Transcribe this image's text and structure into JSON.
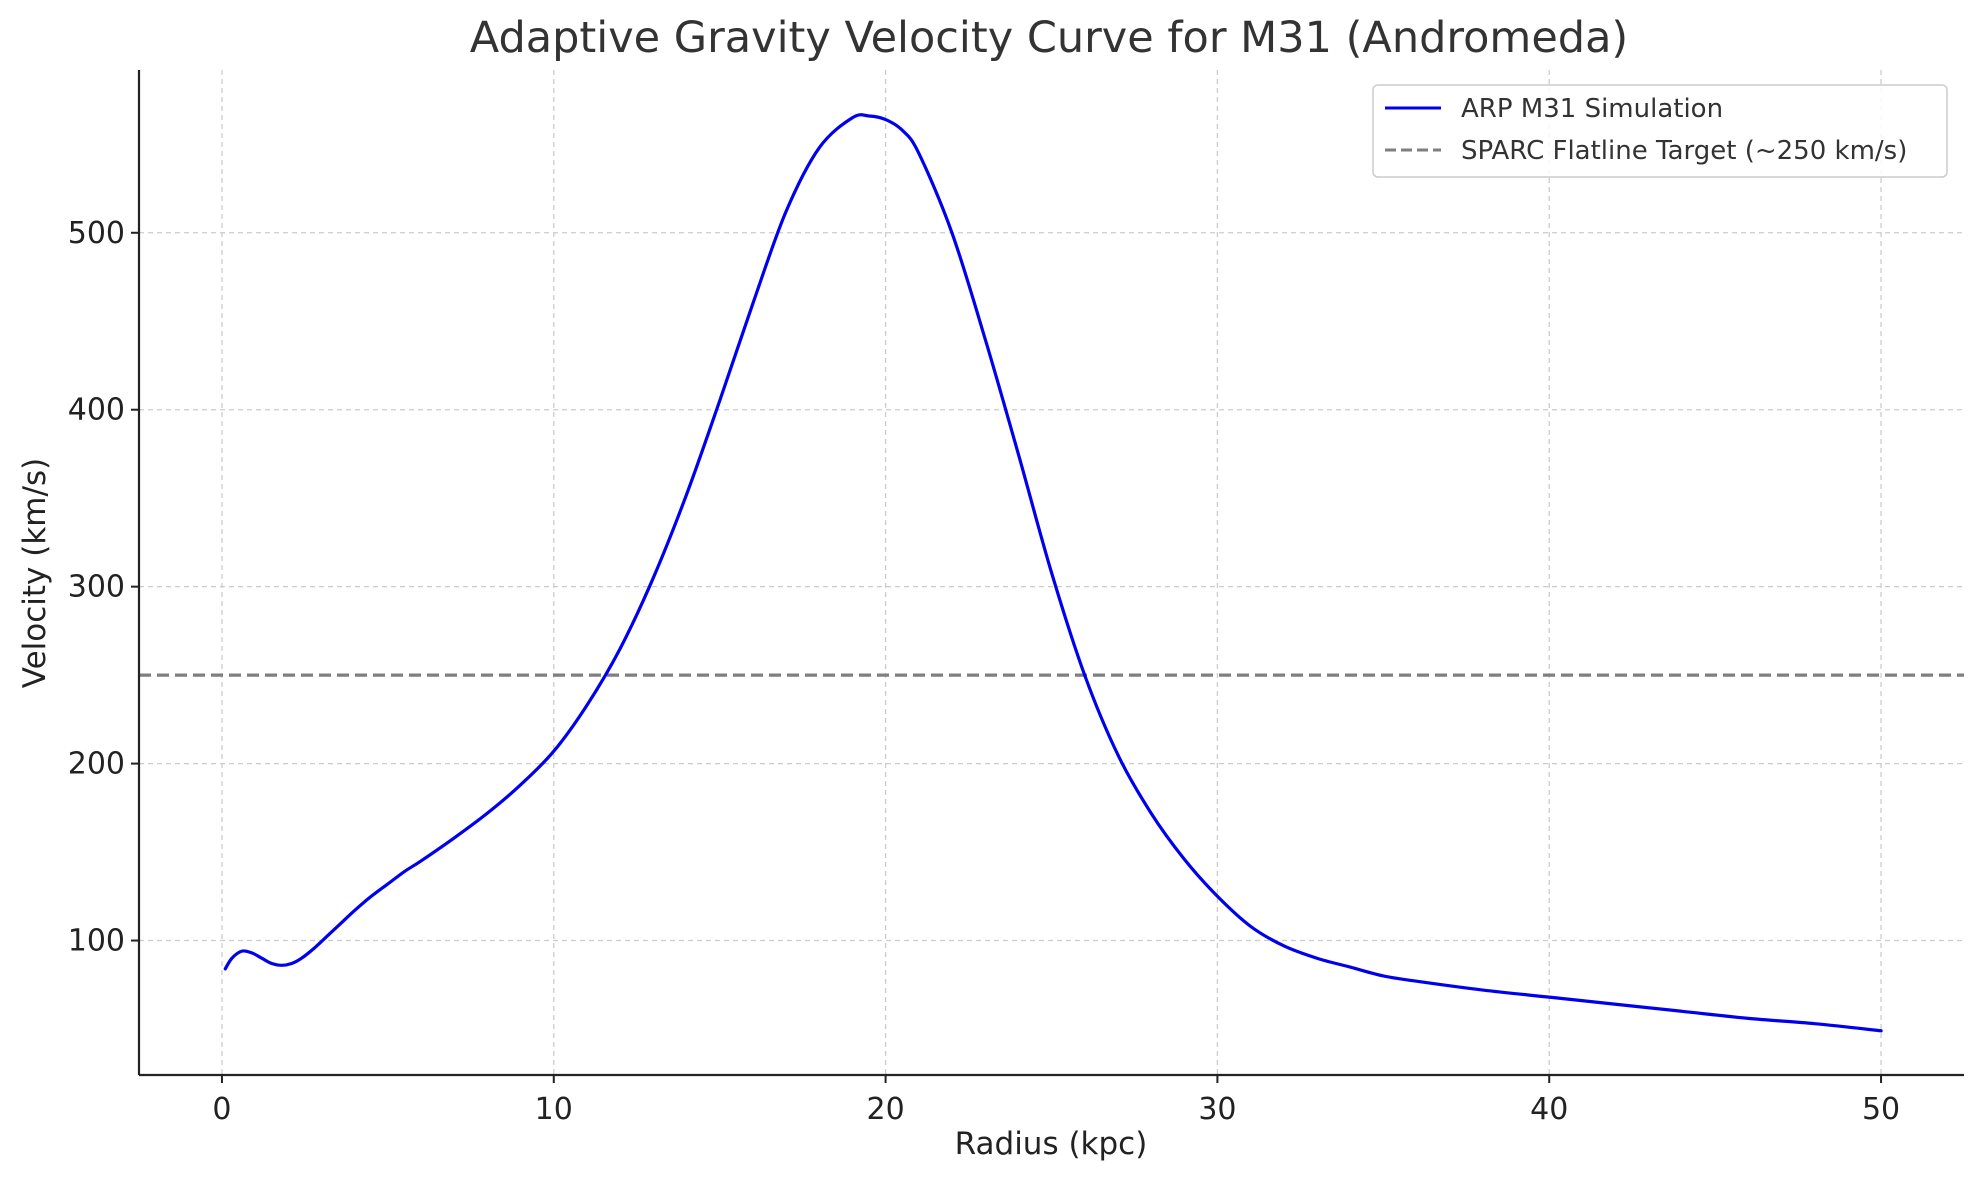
{
  "chart_data": {
    "type": "line",
    "title": "Adaptive Gravity Velocity Curve for M31 (Andromeda)",
    "xlabel": "Radius (kpc)",
    "ylabel": "Velocity (km/s)",
    "xlim": [
      -2.5,
      52.5
    ],
    "ylim": [
      24,
      592
    ],
    "xticks": [
      0,
      10,
      20,
      30,
      40,
      50
    ],
    "yticks": [
      100,
      200,
      300,
      400,
      500
    ],
    "grid": true,
    "legend_position": "top-right",
    "series": [
      {
        "name": "ARP M31 Simulation",
        "color": "#0000ee",
        "style": "solid",
        "x": [
          0.1,
          0.3,
          0.6,
          0.9,
          1.2,
          1.5,
          1.8,
          2.1,
          2.4,
          2.8,
          3.2,
          3.6,
          4.0,
          4.5,
          5.0,
          5.5,
          6.0,
          7.0,
          8.0,
          9.0,
          10.0,
          11.0,
          12.0,
          13.0,
          14.0,
          15.0,
          16.0,
          17.0,
          18.0,
          19.0,
          19.5,
          20.0,
          20.5,
          21.0,
          22.0,
          23.0,
          24.0,
          25.0,
          26.0,
          27.0,
          28.0,
          29.0,
          30.0,
          31.0,
          32.0,
          33.0,
          34.0,
          35.0,
          36.0,
          38.0,
          40.0,
          42.0,
          44.0,
          46.0,
          48.0,
          50.0
        ],
        "y": [
          84,
          90,
          94,
          93,
          90,
          87,
          86,
          87,
          90,
          96,
          103,
          110,
          117,
          125,
          132,
          139,
          145,
          158,
          172,
          188,
          207,
          233,
          265,
          305,
          352,
          405,
          460,
          512,
          548,
          565,
          566,
          564,
          558,
          545,
          500,
          440,
          375,
          308,
          250,
          205,
          172,
          146,
          125,
          108,
          97,
          90,
          85,
          80,
          77,
          72,
          68,
          64,
          60,
          56,
          53,
          49
        ]
      },
      {
        "name": "SPARC Flatline Target (~250 km/s)",
        "color": "#7f7f7f",
        "style": "dashed",
        "y_constant": 250
      }
    ]
  }
}
